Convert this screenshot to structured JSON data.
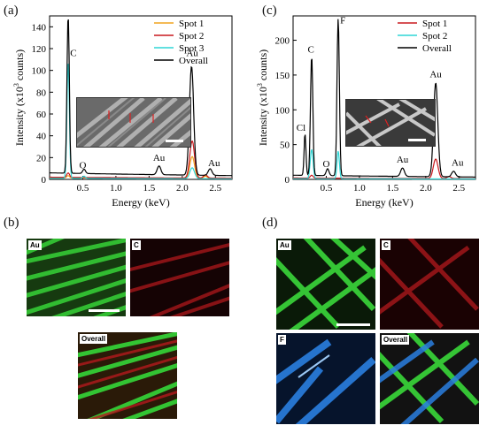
{
  "panels": {
    "a": {
      "letter": "(a)"
    },
    "b": {
      "letter": "(b)",
      "maps": [
        {
          "label": "Au",
          "color": "#2bb52b"
        },
        {
          "label": "C",
          "color": "#c8191e"
        },
        {
          "label": "Overall",
          "color": "mixed"
        }
      ]
    },
    "c": {
      "letter": "(c)"
    },
    "d": {
      "letter": "(d)",
      "maps": [
        {
          "label": "Au",
          "color": "#2bb52b"
        },
        {
          "label": "C",
          "color": "#c8191e"
        },
        {
          "label": "F",
          "color": "#2a7fe0"
        },
        {
          "label": "Overall",
          "color": "mixed"
        }
      ]
    }
  },
  "chart_data": [
    {
      "type": "line",
      "panel": "a",
      "xlabel": "Energy (keV)",
      "ylabel": "Intensity (x10^3 counts)",
      "ylabel_parts": {
        "main": "Intensity (x10",
        "exp": "3",
        "tail": " counts)"
      },
      "xlim": [
        0,
        2.75
      ],
      "ylim": [
        0,
        150
      ],
      "xticks": [
        0.5,
        1.0,
        1.5,
        2.0,
        2.5
      ],
      "xtick_labels": [
        "0.5",
        "1.0",
        "1.5",
        "2.0",
        "2.5"
      ],
      "yticks": [
        0,
        20,
        40,
        60,
        80,
        100,
        120,
        140
      ],
      "ytick_labels": [
        "0",
        "20",
        "40",
        "60",
        "80",
        "100",
        "120",
        "140"
      ],
      "legend_position": "top-right",
      "series": [
        {
          "name": "Spot 1",
          "color": "#f0a31e",
          "peaks": [
            {
              "x": 0.28,
              "h": 2,
              "w": 0.03
            },
            {
              "x": 2.15,
              "h": 20,
              "w": 0.05
            },
            {
              "x": 2.35,
              "h": 2,
              "w": 0.04
            }
          ],
          "baseline": 1.5
        },
        {
          "name": "Spot 2",
          "color": "#c8191e",
          "peaks": [
            {
              "x": 0.28,
              "h": 4,
              "w": 0.03
            },
            {
              "x": 2.15,
              "h": 34,
              "w": 0.05
            },
            {
              "x": 2.35,
              "h": 3,
              "w": 0.04
            }
          ],
          "baseline": 2
        },
        {
          "name": "Spot 3",
          "color": "#2fd6d6",
          "peaks": [
            {
              "x": 0.28,
              "h": 108,
              "w": 0.025
            },
            {
              "x": 0.52,
              "h": 2,
              "w": 0.03
            },
            {
              "x": 2.15,
              "h": 10,
              "w": 0.05
            }
          ],
          "baseline": 1
        },
        {
          "name": "Overall",
          "color": "#000000",
          "peaks": [
            {
              "x": 0.28,
              "h": 145,
              "w": 0.025
            },
            {
              "x": 0.52,
              "h": 4,
              "w": 0.03
            },
            {
              "x": 1.65,
              "h": 8,
              "w": 0.04
            },
            {
              "x": 2.14,
              "h": 100,
              "w": 0.045
            },
            {
              "x": 2.42,
              "h": 6,
              "w": 0.04
            }
          ],
          "baseline": 6
        }
      ],
      "annotations": [
        {
          "text": "C",
          "x": 0.36,
          "y": 113
        },
        {
          "text": "O",
          "x": 0.5,
          "y": 10
        },
        {
          "text": "Au",
          "x": 1.65,
          "y": 17
        },
        {
          "text": "Au",
          "x": 2.15,
          "y": 113
        },
        {
          "text": "Au",
          "x": 2.48,
          "y": 12
        }
      ]
    },
    {
      "type": "line",
      "panel": "c",
      "xlabel": "Energy (keV)",
      "ylabel": "Intensity (x10^3 counts)",
      "ylabel_parts": {
        "main": "Intensity (x10",
        "exp": "3",
        "tail": " counts)"
      },
      "xlim": [
        0,
        2.75
      ],
      "ylim": [
        0,
        235
      ],
      "xticks": [
        0.5,
        1.0,
        1.5,
        2.0,
        2.5
      ],
      "xtick_labels": [
        "0.5",
        "1.0",
        "1.5",
        "2.0",
        "2.5"
      ],
      "yticks": [
        0,
        50,
        100,
        150,
        200
      ],
      "ytick_labels": [
        "0",
        "50",
        "100",
        "150",
        "200"
      ],
      "legend_position": "top-right",
      "series": [
        {
          "name": "Spot 1",
          "color": "#c8191e",
          "peaks": [
            {
              "x": 0.28,
              "h": 4,
              "w": 0.03
            },
            {
              "x": 2.15,
              "h": 28,
              "w": 0.05
            },
            {
              "x": 2.35,
              "h": 3,
              "w": 0.04
            }
          ],
          "baseline": 2
        },
        {
          "name": "Spot 2",
          "color": "#2fd6d6",
          "peaks": [
            {
              "x": 0.28,
              "h": 42,
              "w": 0.03
            },
            {
              "x": 0.68,
              "h": 40,
              "w": 0.025
            }
          ],
          "baseline": 1
        },
        {
          "name": "Overall",
          "color": "#000000",
          "peaks": [
            {
              "x": 0.18,
              "h": 60,
              "w": 0.02
            },
            {
              "x": 0.28,
              "h": 172,
              "w": 0.025
            },
            {
              "x": 0.52,
              "h": 10,
              "w": 0.03
            },
            {
              "x": 0.68,
              "h": 226,
              "w": 0.025
            },
            {
              "x": 1.65,
              "h": 12,
              "w": 0.04
            },
            {
              "x": 2.15,
              "h": 135,
              "w": 0.045
            },
            {
              "x": 2.42,
              "h": 8,
              "w": 0.04
            }
          ],
          "baseline": 6
        }
      ],
      "annotations": [
        {
          "text": "Cl",
          "x": 0.12,
          "y": 70
        },
        {
          "text": "C",
          "x": 0.27,
          "y": 182
        },
        {
          "text": "O",
          "x": 0.5,
          "y": 18
        },
        {
          "text": "F",
          "x": 0.75,
          "y": 224
        },
        {
          "text": "Au",
          "x": 1.65,
          "y": 24
        },
        {
          "text": "Au",
          "x": 2.15,
          "y": 147
        },
        {
          "text": "Au",
          "x": 2.48,
          "y": 20
        }
      ]
    }
  ]
}
